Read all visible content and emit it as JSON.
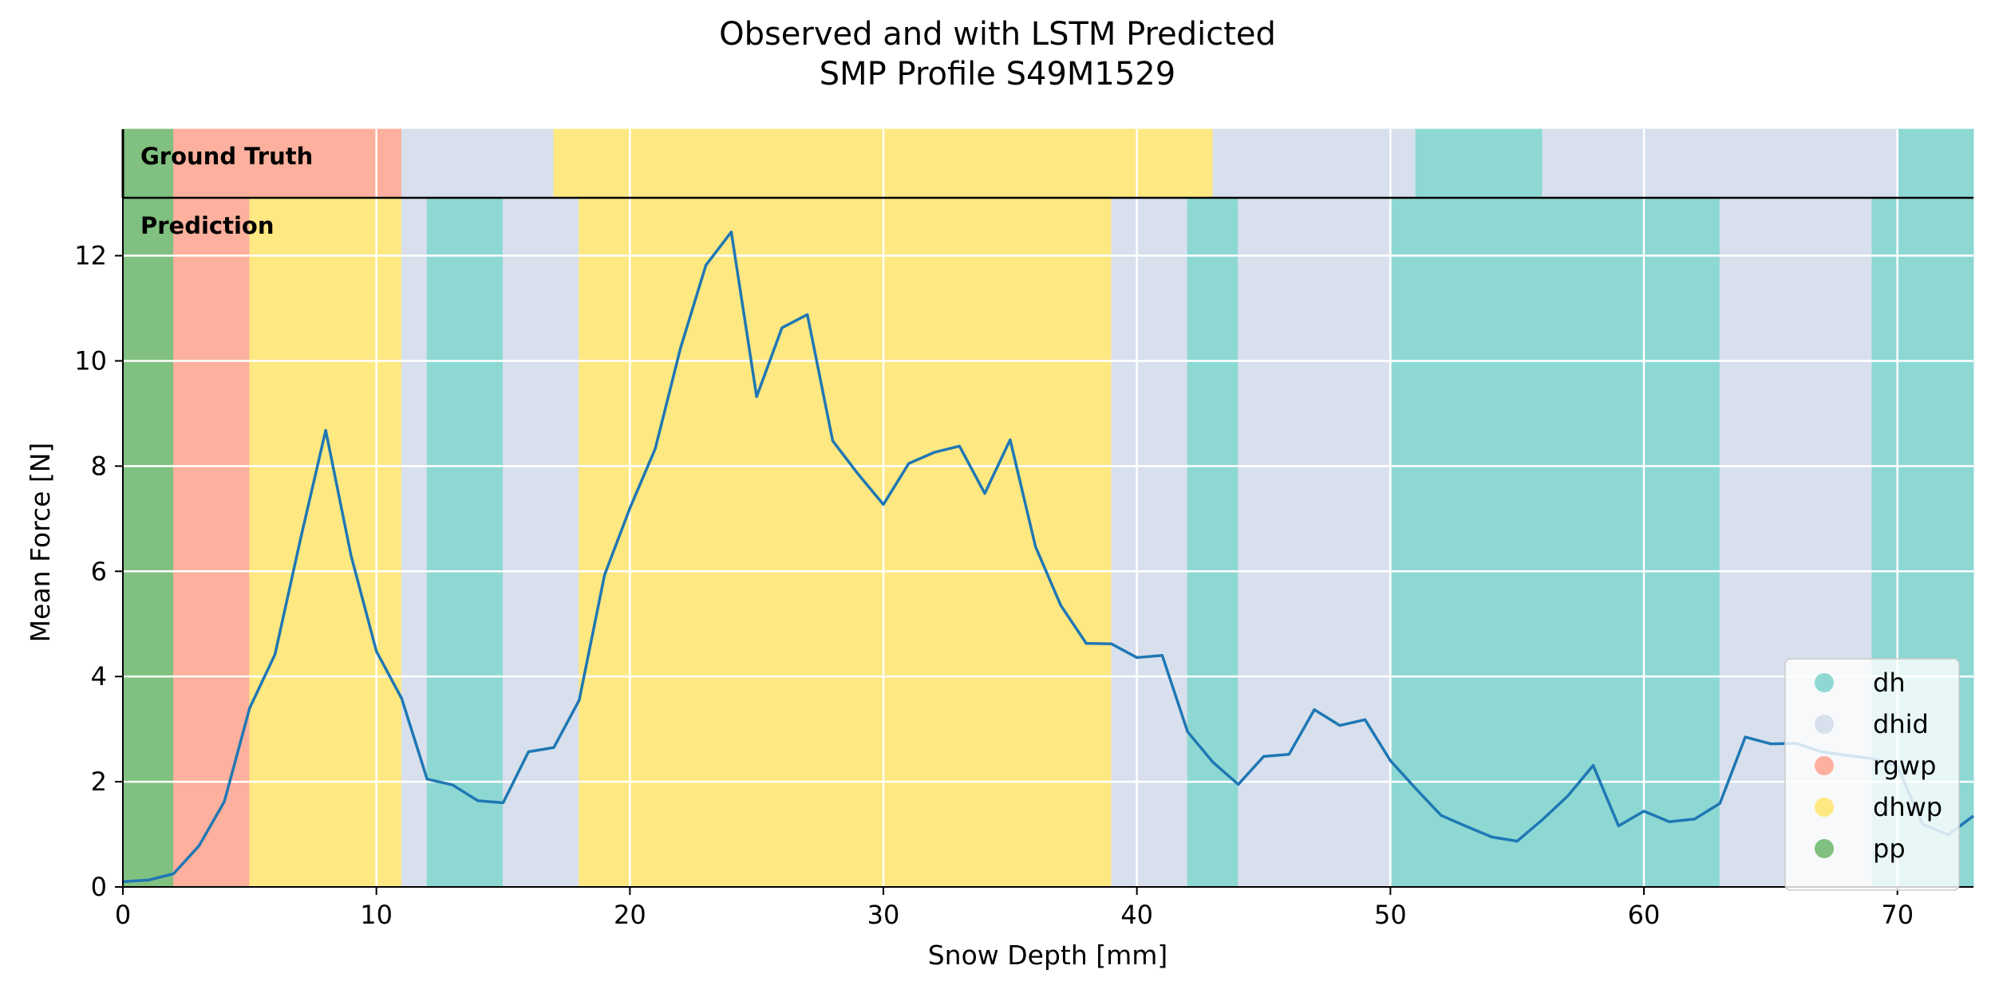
{
  "chart_data": {
    "type": "line",
    "title": [
      "Observed and with LSTM Predicted",
      "SMP Profile S49M1529"
    ],
    "xlabel": "Snow Depth [mm]",
    "ylabel": "Mean Force [N]",
    "xlim": [
      0,
      73
    ],
    "ylim": [
      0,
      13.1
    ],
    "xticks": [
      0,
      10,
      20,
      30,
      40,
      50,
      60,
      70
    ],
    "yticks": [
      0,
      2,
      4,
      6,
      8,
      10,
      12
    ],
    "grid": true,
    "legend_position": "bottom-right",
    "panel_labels": {
      "ground_truth": "Ground Truth",
      "prediction": "Prediction"
    },
    "classes": [
      {
        "name": "dh",
        "color": "#8dd8d3"
      },
      {
        "name": "dhid",
        "color": "#d7e0ec"
      },
      {
        "name": "rgwp",
        "color": "#fdb09e"
      },
      {
        "name": "dhwp",
        "color": "#fee882"
      },
      {
        "name": "pp",
        "color": "#80c080"
      }
    ],
    "ground_truth_segments": [
      {
        "start": 0,
        "end": 2,
        "label": "pp"
      },
      {
        "start": 2,
        "end": 11,
        "label": "rgwp"
      },
      {
        "start": 11,
        "end": 17,
        "label": "dhid"
      },
      {
        "start": 17,
        "end": 43,
        "label": "dhwp"
      },
      {
        "start": 43,
        "end": 51,
        "label": "dhid"
      },
      {
        "start": 51,
        "end": 56,
        "label": "dh"
      },
      {
        "start": 56,
        "end": 70,
        "label": "dhid"
      },
      {
        "start": 70,
        "end": 73,
        "label": "dh"
      }
    ],
    "prediction_segments": [
      {
        "start": 0,
        "end": 2,
        "label": "pp"
      },
      {
        "start": 2,
        "end": 5,
        "label": "rgwp"
      },
      {
        "start": 5,
        "end": 11,
        "label": "dhwp"
      },
      {
        "start": 11,
        "end": 12,
        "label": "dhid"
      },
      {
        "start": 12,
        "end": 15,
        "label": "dh"
      },
      {
        "start": 15,
        "end": 18,
        "label": "dhid"
      },
      {
        "start": 18,
        "end": 39,
        "label": "dhwp"
      },
      {
        "start": 39,
        "end": 42,
        "label": "dhid"
      },
      {
        "start": 42,
        "end": 44,
        "label": "dh"
      },
      {
        "start": 44,
        "end": 50,
        "label": "dhid"
      },
      {
        "start": 50,
        "end": 63,
        "label": "dh"
      },
      {
        "start": 63,
        "end": 69,
        "label": "dhid"
      },
      {
        "start": 69,
        "end": 73,
        "label": "dh"
      }
    ],
    "series": [
      {
        "color": "#1f77b4",
        "x": [
          0,
          1,
          2,
          3,
          4,
          5,
          6,
          7,
          8,
          9,
          10,
          11,
          12,
          13,
          14,
          15,
          16,
          17,
          18,
          19,
          20,
          21,
          22,
          23,
          24,
          25,
          26,
          27,
          28,
          29,
          30,
          31,
          32,
          33,
          34,
          35,
          36,
          37,
          38,
          39,
          40,
          41,
          42,
          43,
          44,
          45,
          46,
          47,
          48,
          49,
          50,
          51,
          52,
          53,
          54,
          55,
          56,
          57,
          58,
          59,
          60,
          61,
          62,
          63,
          64,
          65,
          66,
          67,
          68,
          69,
          70,
          71,
          72,
          73
        ],
        "y": [
          0.1,
          0.13,
          0.25,
          0.78,
          1.62,
          3.4,
          4.42,
          6.6,
          8.68,
          6.3,
          4.48,
          3.58,
          2.05,
          1.94,
          1.64,
          1.6,
          2.57,
          2.65,
          3.55,
          5.93,
          7.2,
          8.33,
          10.25,
          11.82,
          12.45,
          9.32,
          10.63,
          10.88,
          8.48,
          7.85,
          7.27,
          8.05,
          8.26,
          8.38,
          7.48,
          8.5,
          6.47,
          5.35,
          4.63,
          4.62,
          4.36,
          4.4,
          2.95,
          2.37,
          1.95,
          2.48,
          2.52,
          3.37,
          3.07,
          3.18,
          2.4,
          1.87,
          1.36,
          1.15,
          0.95,
          0.87,
          1.28,
          1.73,
          2.31,
          1.16,
          1.44,
          1.24,
          1.29,
          1.59,
          2.85,
          2.72,
          2.73,
          2.57,
          2.5,
          2.44,
          2.29,
          1.19,
          0.99,
          1.35
        ]
      }
    ]
  }
}
